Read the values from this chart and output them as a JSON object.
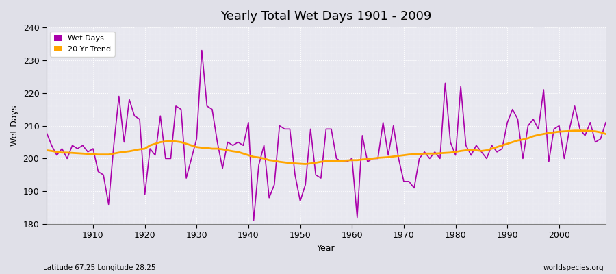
{
  "title": "Yearly Total Wet Days 1901 - 2009",
  "xlabel": "Year",
  "ylabel": "Wet Days",
  "footnote_left": "Latitude 67.25 Longitude 28.25",
  "footnote_right": "worldspecies.org",
  "ylim": [
    180,
    240
  ],
  "xlim": [
    1901,
    2009
  ],
  "yticks": [
    180,
    190,
    200,
    210,
    220,
    230,
    240
  ],
  "xticks": [
    1910,
    1920,
    1930,
    1940,
    1950,
    1960,
    1970,
    1980,
    1990,
    2000
  ],
  "wet_days_color": "#aa00aa",
  "trend_color": "#FFA500",
  "bg_color": "#e0e0e8",
  "plot_bg": "#e8e8f0",
  "wet_days": {
    "1901": 208,
    "1902": 204,
    "1903": 201,
    "1904": 203,
    "1905": 200,
    "1906": 204,
    "1907": 203,
    "1908": 204,
    "1909": 202,
    "1910": 203,
    "1911": 196,
    "1912": 195,
    "1913": 186,
    "1914": 204,
    "1915": 219,
    "1916": 205,
    "1917": 218,
    "1918": 213,
    "1919": 212,
    "1920": 189,
    "1921": 203,
    "1922": 201,
    "1923": 213,
    "1924": 200,
    "1925": 200,
    "1926": 216,
    "1927": 215,
    "1928": 194,
    "1929": 200,
    "1930": 206,
    "1931": 233,
    "1932": 216,
    "1933": 215,
    "1934": 205,
    "1935": 197,
    "1936": 205,
    "1937": 204,
    "1938": 205,
    "1939": 204,
    "1940": 211,
    "1941": 181,
    "1942": 198,
    "1943": 204,
    "1944": 188,
    "1945": 192,
    "1946": 210,
    "1947": 209,
    "1948": 209,
    "1949": 195,
    "1950": 187,
    "1951": 192,
    "1952": 209,
    "1953": 195,
    "1954": 194,
    "1955": 209,
    "1956": 209,
    "1957": 200,
    "1958": 199,
    "1959": 199,
    "1960": 200,
    "1961": 182,
    "1962": 207,
    "1963": 199,
    "1964": 200,
    "1965": 200,
    "1966": 211,
    "1967": 201,
    "1968": 210,
    "1969": 200,
    "1970": 193,
    "1971": 193,
    "1972": 191,
    "1973": 200,
    "1974": 202,
    "1975": 200,
    "1976": 202,
    "1977": 200,
    "1978": 223,
    "1979": 205,
    "1980": 201,
    "1981": 222,
    "1982": 204,
    "1983": 201,
    "1984": 204,
    "1985": 202,
    "1986": 200,
    "1987": 204,
    "1988": 202,
    "1989": 203,
    "1990": 211,
    "1991": 215,
    "1992": 212,
    "1993": 200,
    "1994": 210,
    "1995": 212,
    "1996": 209,
    "1997": 221,
    "1998": 199,
    "1999": 209,
    "2000": 210,
    "2001": 200,
    "2002": 209,
    "2003": 216,
    "2004": 209,
    "2005": 207,
    "2006": 211,
    "2007": 205,
    "2008": 206,
    "2009": 211
  },
  "trend": [
    [
      1901,
      202.5
    ],
    [
      1902,
      202.3
    ],
    [
      1903,
      202.0
    ],
    [
      1904,
      201.8
    ],
    [
      1905,
      201.8
    ],
    [
      1906,
      201.7
    ],
    [
      1907,
      201.6
    ],
    [
      1908,
      201.5
    ],
    [
      1909,
      201.4
    ],
    [
      1910,
      201.3
    ],
    [
      1911,
      201.2
    ],
    [
      1912,
      201.2
    ],
    [
      1913,
      201.2
    ],
    [
      1914,
      201.5
    ],
    [
      1915,
      201.8
    ],
    [
      1916,
      202.0
    ],
    [
      1917,
      202.2
    ],
    [
      1918,
      202.5
    ],
    [
      1919,
      202.8
    ],
    [
      1920,
      203.0
    ],
    [
      1921,
      204.0
    ],
    [
      1922,
      204.5
    ],
    [
      1923,
      205.0
    ],
    [
      1924,
      205.2
    ],
    [
      1925,
      205.3
    ],
    [
      1926,
      205.2
    ],
    [
      1927,
      205.0
    ],
    [
      1928,
      204.5
    ],
    [
      1929,
      204.0
    ],
    [
      1930,
      203.5
    ],
    [
      1931,
      203.3
    ],
    [
      1932,
      203.2
    ],
    [
      1933,
      203.0
    ],
    [
      1934,
      203.0
    ],
    [
      1935,
      202.8
    ],
    [
      1936,
      202.5
    ],
    [
      1937,
      202.2
    ],
    [
      1938,
      202.0
    ],
    [
      1939,
      201.5
    ],
    [
      1940,
      201.0
    ],
    [
      1941,
      200.5
    ],
    [
      1942,
      200.3
    ],
    [
      1943,
      200.0
    ],
    [
      1944,
      199.5
    ],
    [
      1945,
      199.3
    ],
    [
      1946,
      199.0
    ],
    [
      1947,
      198.8
    ],
    [
      1948,
      198.6
    ],
    [
      1949,
      198.5
    ],
    [
      1950,
      198.4
    ],
    [
      1951,
      198.3
    ],
    [
      1952,
      198.5
    ],
    [
      1953,
      198.7
    ],
    [
      1954,
      199.0
    ],
    [
      1955,
      199.2
    ],
    [
      1956,
      199.3
    ],
    [
      1957,
      199.3
    ],
    [
      1958,
      199.3
    ],
    [
      1959,
      199.4
    ],
    [
      1960,
      199.5
    ],
    [
      1961,
      199.5
    ],
    [
      1962,
      199.7
    ],
    [
      1963,
      199.8
    ],
    [
      1964,
      200.0
    ],
    [
      1965,
      200.2
    ],
    [
      1966,
      200.3
    ],
    [
      1967,
      200.4
    ],
    [
      1968,
      200.6
    ],
    [
      1969,
      200.8
    ],
    [
      1970,
      201.0
    ],
    [
      1971,
      201.2
    ],
    [
      1972,
      201.3
    ],
    [
      1973,
      201.4
    ],
    [
      1974,
      201.5
    ],
    [
      1975,
      201.5
    ],
    [
      1976,
      201.5
    ],
    [
      1977,
      201.6
    ],
    [
      1978,
      201.7
    ],
    [
      1979,
      201.8
    ],
    [
      1980,
      202.0
    ],
    [
      1981,
      202.3
    ],
    [
      1982,
      202.5
    ],
    [
      1983,
      202.5
    ],
    [
      1984,
      202.5
    ],
    [
      1985,
      202.3
    ],
    [
      1986,
      202.5
    ],
    [
      1987,
      203.0
    ],
    [
      1988,
      203.5
    ],
    [
      1989,
      204.0
    ],
    [
      1990,
      204.5
    ],
    [
      1991,
      205.0
    ],
    [
      1992,
      205.5
    ],
    [
      1993,
      205.8
    ],
    [
      1994,
      206.2
    ],
    [
      1995,
      206.8
    ],
    [
      1996,
      207.2
    ],
    [
      1997,
      207.5
    ],
    [
      1998,
      207.8
    ],
    [
      1999,
      208.0
    ],
    [
      2000,
      208.2
    ],
    [
      2001,
      208.3
    ],
    [
      2002,
      208.4
    ],
    [
      2003,
      208.5
    ],
    [
      2004,
      208.5
    ],
    [
      2005,
      208.5
    ],
    [
      2006,
      208.4
    ],
    [
      2007,
      208.3
    ],
    [
      2008,
      208.0
    ],
    [
      2009,
      207.5
    ]
  ]
}
